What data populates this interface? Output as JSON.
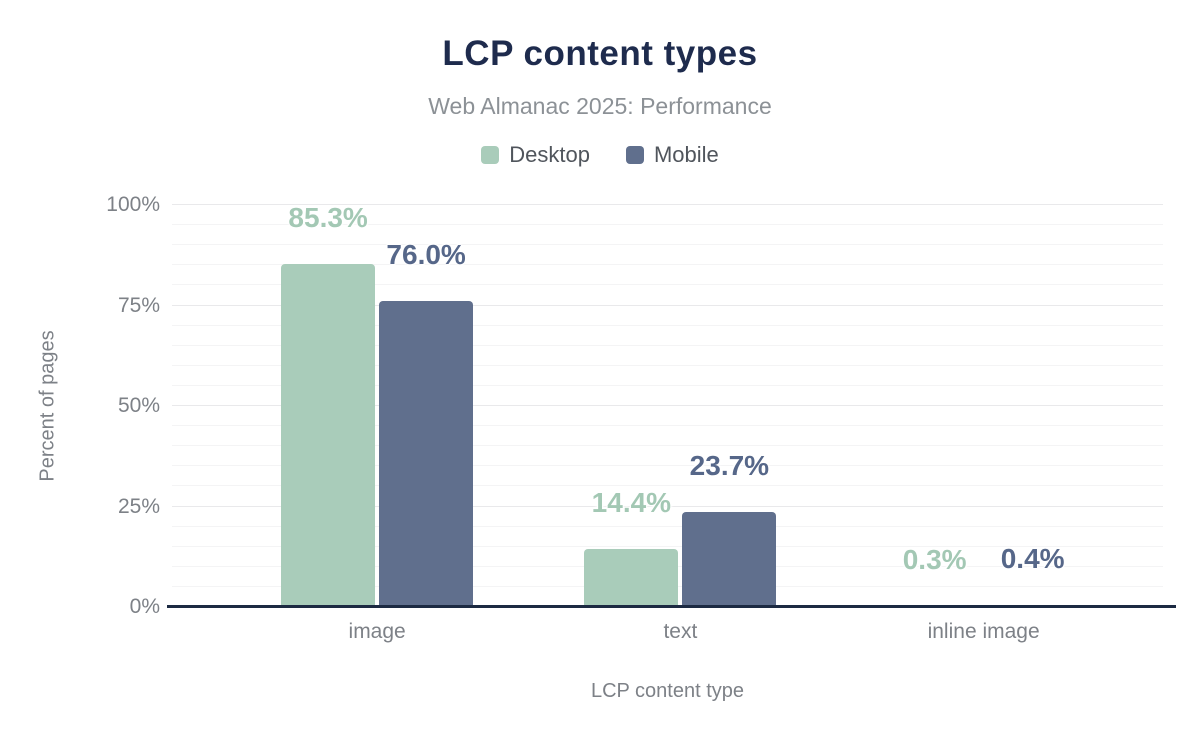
{
  "chart_data": {
    "type": "bar",
    "title": "LCP content types",
    "subtitle": "Web Almanac 2025: Performance",
    "xlabel": "LCP content type",
    "ylabel": "Percent of pages",
    "categories": [
      "image",
      "text",
      "inline image"
    ],
    "series": [
      {
        "name": "Desktop",
        "color": "#a9ccba",
        "label_color": "#a3c8b4",
        "values": [
          85.3,
          14.4,
          0.3
        ]
      },
      {
        "name": "Mobile",
        "color": "#606f8d",
        "label_color": "#566789",
        "values": [
          76.0,
          23.7,
          0.4
        ]
      }
    ],
    "value_label_format": "{value}%",
    "ylim": [
      0,
      100
    ],
    "yticks": [
      "0%",
      "25%",
      "50%",
      "75%",
      "100%"
    ],
    "grid": "horizontal, minor every 5%, major every 25%",
    "legend_position": "top-center"
  },
  "colors": {
    "background": "#ffffff",
    "title_text": "#1e2b4d",
    "subtitle_text": "#8c9196",
    "legend_text": "#50555c",
    "axis_text": "#7d8187",
    "axis_line": "#1c2a42",
    "grid_major": "#e9e9eb",
    "grid_minor": "#f4f4f5"
  }
}
